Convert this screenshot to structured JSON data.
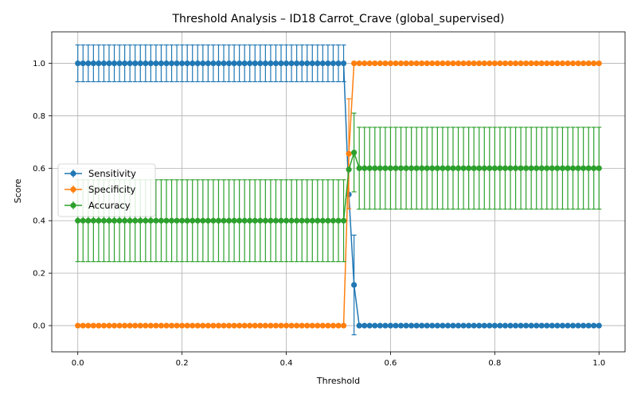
{
  "chart_data": {
    "type": "line",
    "title": "Threshold Analysis – ID18 Carrot_Crave (global_supervised)",
    "xlabel": "Threshold",
    "ylabel": "Score",
    "xlim": [
      -0.05,
      1.05
    ],
    "ylim": [
      -0.1,
      1.12
    ],
    "xticks": [
      0.0,
      0.2,
      0.4,
      0.6,
      0.8,
      1.0
    ],
    "xtick_labels": [
      "0.0",
      "0.2",
      "0.4",
      "0.6",
      "0.8",
      "1.0"
    ],
    "yticks": [
      0.0,
      0.2,
      0.4,
      0.6,
      0.8,
      1.0
    ],
    "ytick_labels": [
      "0.0",
      "0.2",
      "0.4",
      "0.6",
      "0.8",
      "1.0"
    ],
    "grid": true,
    "legend_position": "center-left",
    "x": {
      "start": 0.0,
      "stop": 1.0,
      "step": 0.01
    },
    "series": [
      {
        "name": "Sensitivity",
        "color": "#1f77b4",
        "default": {
          "value": 1.0,
          "err": 0.07
        },
        "after": {
          "from": 0.54,
          "value": 0.0,
          "err": 0.0
        },
        "overrides": [
          {
            "x": 0.52,
            "value": 0.5,
            "err": 0.0
          },
          {
            "x": 0.53,
            "value": 0.155,
            "err": 0.19
          }
        ]
      },
      {
        "name": "Specificity",
        "color": "#ff7f0e",
        "default": {
          "value": 0.0,
          "err": 0.0
        },
        "after": {
          "from": 0.53,
          "value": 1.0,
          "err": 0.0
        },
        "overrides": [
          {
            "x": 0.52,
            "value": 0.655,
            "err": 0.21
          }
        ]
      },
      {
        "name": "Accuracy",
        "color": "#2ca02c",
        "default": {
          "value": 0.4,
          "err": 0.156
        },
        "after": {
          "from": 0.54,
          "value": 0.6,
          "err": 0.156
        },
        "overrides": [
          {
            "x": 0.52,
            "value": 0.595,
            "err": 0.0
          },
          {
            "x": 0.53,
            "value": 0.66,
            "err": 0.15
          }
        ]
      }
    ]
  }
}
